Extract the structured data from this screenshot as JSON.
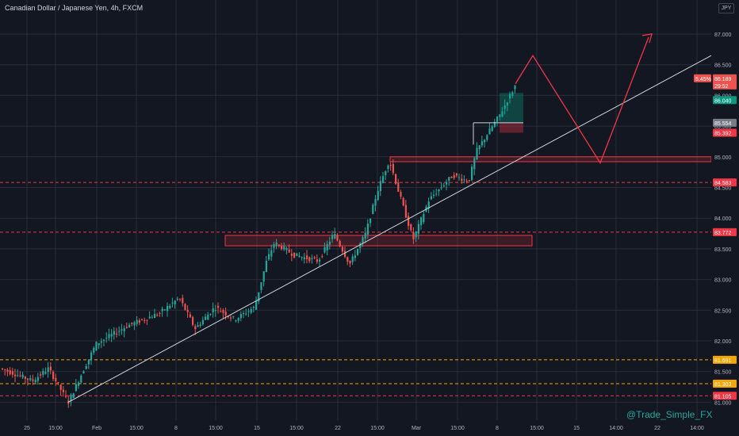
{
  "header": {
    "title": "Canadian Dollar / Japanese Yen, 4h, FXCM",
    "currency": "JPY"
  },
  "watermark": "@Trade_Simple_FX",
  "colors": {
    "background": "#131722",
    "grid": "#2a2e39",
    "bull": "#26a69a",
    "bear": "#ef5350",
    "axis_text": "#b2b5be",
    "trendline": "#d1d4dc",
    "zone_border": "#f23645",
    "projection": "#f23645"
  },
  "chart_data": {
    "type": "candlestick",
    "title": "Canadian Dollar / Japanese Yen, 4h, FXCM",
    "y_unit": "JPY",
    "ylim": [
      80.9,
      87.2
    ],
    "y_ticks": [
      "87.000",
      "86.500",
      "86.000",
      "85.500",
      "85.000",
      "84.500",
      "84.000",
      "83.500",
      "83.000",
      "82.500",
      "82.000",
      "81.500",
      "81.000"
    ],
    "x_ticks": [
      "25",
      "15:00",
      "Feb",
      "15:00",
      "8",
      "15:00",
      "15",
      "15:00",
      "22",
      "15:00",
      "Mar",
      "15:00",
      "8",
      "15:00",
      "15",
      "14:00",
      "22",
      "14:00"
    ],
    "price_path": [
      [
        0,
        81.55
      ],
      [
        40,
        81.35
      ],
      [
        60,
        81.55
      ],
      [
        85,
        81.0
      ],
      [
        105,
        81.55
      ],
      [
        120,
        81.95
      ],
      [
        160,
        82.25
      ],
      [
        200,
        82.45
      ],
      [
        225,
        82.7
      ],
      [
        245,
        82.2
      ],
      [
        270,
        82.55
      ],
      [
        295,
        82.35
      ],
      [
        320,
        82.55
      ],
      [
        335,
        83.3
      ],
      [
        345,
        83.6
      ],
      [
        370,
        83.4
      ],
      [
        400,
        83.3
      ],
      [
        420,
        83.75
      ],
      [
        440,
        83.25
      ],
      [
        460,
        83.75
      ],
      [
        475,
        84.45
      ],
      [
        490,
        84.95
      ],
      [
        500,
        84.5
      ],
      [
        520,
        83.65
      ],
      [
        540,
        84.3
      ],
      [
        570,
        84.7
      ],
      [
        590,
        84.6
      ],
      [
        600,
        85.1
      ],
      [
        615,
        85.4
      ],
      [
        630,
        85.7
      ],
      [
        640,
        85.95
      ],
      [
        650,
        86.189
      ]
    ],
    "price_labels": [
      {
        "label": "5.45%",
        "value": 86.189,
        "color": "#ef5350"
      },
      {
        "label": "86.189",
        "value": 86.189,
        "color": "#ef5350"
      },
      {
        "label": "29:52",
        "value": 86.189,
        "color": "#ef5350"
      },
      {
        "label": "86.040",
        "value": 86.04,
        "color": "#089981"
      },
      {
        "label": "85.554",
        "value": 85.554,
        "color": "#787b86"
      },
      {
        "label": "85.392",
        "value": 85.392,
        "color": "#f23645"
      },
      {
        "label": "84.583",
        "value": 84.583,
        "color": "#f23645"
      },
      {
        "label": "83.772",
        "value": 83.772,
        "color": "#f23645"
      },
      {
        "label": "81.691",
        "value": 81.691,
        "color": "#f7a600"
      },
      {
        "label": "81.303",
        "value": 81.303,
        "color": "#f7a600"
      },
      {
        "label": "81.105",
        "value": 81.105,
        "color": "#f23645"
      }
    ],
    "horizontal_levels": [
      {
        "value": 84.583,
        "color": "#f23645"
      },
      {
        "value": 83.772,
        "color": "#f23645"
      },
      {
        "value": 81.691,
        "color": "#f7a600"
      },
      {
        "value": 81.303,
        "color": "#f7a600"
      },
      {
        "value": 81.105,
        "color": "#f23645"
      }
    ],
    "zones": [
      {
        "y_top": 83.72,
        "y_bottom": 83.55
      },
      {
        "y_top": 85.0,
        "y_bottom": 84.92
      }
    ],
    "trendline": [
      [
        81.0
      ],
      [
        86.65
      ]
    ],
    "projection": [
      86.189,
      86.65,
      84.9,
      86.95
    ],
    "position": {
      "entry": 85.554,
      "target": 86.04,
      "stop": 85.392
    }
  }
}
